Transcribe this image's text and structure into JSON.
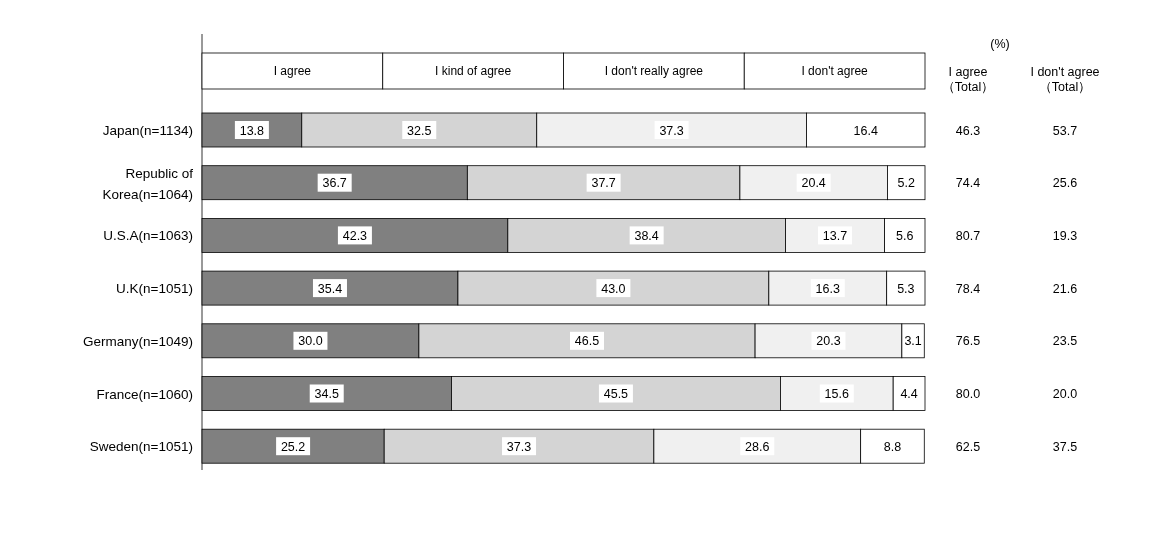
{
  "chart_data": [
    {
      "type": "bar",
      "orientation": "horizontal",
      "stacked": true,
      "categories": [
        "Japan(n=1134)",
        "Republic of Korea(n=1064)",
        "U.S.A(n=1063)",
        "U.K(n=1051)",
        "Germany(n=1049)",
        "France(n=1060)",
        "Sweden(n=1051)"
      ],
      "series": [
        {
          "name": "I agree",
          "color": "#808080",
          "values": [
            13.8,
            36.7,
            42.3,
            35.4,
            30.0,
            34.5,
            25.2
          ],
          "value_labels": [
            "13.8",
            "36.7",
            "42.3",
            "35.4",
            "30.0",
            "34.5",
            "25.2"
          ]
        },
        {
          "name": "I kind of agree",
          "color": "#d4d4d4",
          "values": [
            32.5,
            37.7,
            38.4,
            43.0,
            46.5,
            45.5,
            37.3
          ],
          "value_labels": [
            "32.5",
            "37.7",
            "38.4",
            "43.0",
            "46.5",
            "45.5",
            "37.3"
          ]
        },
        {
          "name": "I don't really agree",
          "color": "#f0f0f0",
          "values": [
            37.3,
            20.4,
            13.7,
            16.3,
            20.3,
            15.6,
            28.6
          ],
          "value_labels": [
            "37.3",
            "20.4",
            "13.7",
            "16.3",
            "20.3",
            "15.6",
            "28.6"
          ]
        },
        {
          "name": "I don't agree",
          "color": "#ffffff",
          "values": [
            16.4,
            5.2,
            5.6,
            5.3,
            3.1,
            4.4,
            8.8
          ],
          "value_labels": [
            "16.4",
            "5.2",
            "5.6",
            "5.3",
            "3.1",
            "4.4",
            "8.8"
          ]
        }
      ],
      "xlim": [
        0,
        100
      ],
      "tick_labels": "y",
      "legend": "top",
      "annotations": [
        "(%)"
      ]
    },
    {
      "type": "heatmap",
      "categories": [
        "I agree（Total）",
        "I don't agree（Total）"
      ],
      "y_categories": [
        null,
        null,
        null,
        null,
        null,
        null,
        null
      ],
      "cells": [
        [
          46.3,
          53.7
        ],
        [
          74.4,
          25.6
        ],
        [
          80.7,
          19.3
        ],
        [
          78.4,
          21.6
        ],
        [
          76.5,
          23.5
        ],
        [
          80.0,
          20.0
        ],
        [
          62.5,
          37.5
        ]
      ],
      "cell_labels": [
        [
          "46.3",
          "53.7"
        ],
        [
          "74.4",
          "25.6"
        ],
        [
          "80.7",
          "19.3"
        ],
        [
          "78.4",
          "21.6"
        ],
        [
          "76.5",
          "23.5"
        ],
        [
          "80.0",
          "20.0"
        ],
        [
          "62.5",
          "37.5"
        ]
      ]
    }
  ]
}
